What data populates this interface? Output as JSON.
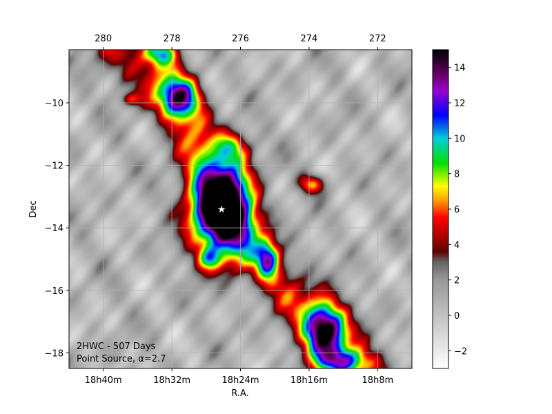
{
  "chart_data": {
    "type": "heatmap",
    "title": "",
    "xlabel": "R.A.",
    "ylabel": "Dec",
    "xlim_deg": [
      281,
      271
    ],
    "ylim": [
      -18.5,
      -8.3
    ],
    "bottom_ticks": [
      {
        "ra": 280.0,
        "label": "18h40m"
      },
      {
        "ra": 278.0,
        "label": "18h32m"
      },
      {
        "ra": 276.0,
        "label": "18h24m"
      },
      {
        "ra": 274.0,
        "label": "18h16m"
      },
      {
        "ra": 272.0,
        "label": "18h8m"
      }
    ],
    "top_ticks": [
      {
        "ra": 280,
        "label": "280"
      },
      {
        "ra": 278,
        "label": "278"
      },
      {
        "ra": 276,
        "label": "276"
      },
      {
        "ra": 274,
        "label": "274"
      },
      {
        "ra": 272,
        "label": "272"
      }
    ],
    "y_ticks": [
      {
        "dec": -10,
        "label": "−10"
      },
      {
        "dec": -12,
        "label": "−12"
      },
      {
        "dec": -14,
        "label": "−14"
      },
      {
        "dec": -16,
        "label": "−16"
      },
      {
        "dec": -18,
        "label": "−18"
      }
    ],
    "grid": true,
    "colorbar": {
      "range": [
        -3,
        15
      ],
      "ticks": [
        {
          "v": -2,
          "label": "−2"
        },
        {
          "v": 0,
          "label": "0"
        },
        {
          "v": 2,
          "label": "2"
        },
        {
          "v": 4,
          "label": "4"
        },
        {
          "v": 6,
          "label": "6"
        },
        {
          "v": 8,
          "label": "8"
        },
        {
          "v": 10,
          "label": "10"
        },
        {
          "v": 12,
          "label": "12"
        },
        {
          "v": 14,
          "label": "14"
        }
      ],
      "stops": [
        {
          "v": -3,
          "color": "#ffffff"
        },
        {
          "v": 2.0,
          "color": "#999999"
        },
        {
          "v": 3.0,
          "color": "#666666"
        },
        {
          "v": 3.6,
          "color": "#600000"
        },
        {
          "v": 4.5,
          "color": "#b00000"
        },
        {
          "v": 5.5,
          "color": "#ff0000"
        },
        {
          "v": 6.5,
          "color": "#ffa000"
        },
        {
          "v": 7.3,
          "color": "#ffff00"
        },
        {
          "v": 8.6,
          "color": "#00e000"
        },
        {
          "v": 10.0,
          "color": "#00ccdd"
        },
        {
          "v": 11.3,
          "color": "#0000ff"
        },
        {
          "v": 12.7,
          "color": "#9900cc"
        },
        {
          "v": 13.6,
          "color": "#660066"
        },
        {
          "v": 15.0,
          "color": "#000000"
        }
      ]
    },
    "sources": [
      {
        "ra": 276.55,
        "dec": -13.4,
        "peak": 17.5,
        "sra": 0.62,
        "sdec": 1.05
      },
      {
        "ra": 273.55,
        "dec": -17.25,
        "peak": 12.5,
        "sra": 0.42,
        "sdec": 0.62
      },
      {
        "ra": 277.8,
        "dec": -9.85,
        "peak": 9.8,
        "sra": 0.42,
        "sdec": 0.48
      },
      {
        "ra": 278.3,
        "dec": -8.4,
        "peak": 8.0,
        "sra": 0.35,
        "sdec": 0.3
      },
      {
        "ra": 275.2,
        "dec": -15.0,
        "peak": 7.8,
        "sra": 0.22,
        "sdec": 0.4
      },
      {
        "ra": 273.0,
        "dec": -18.3,
        "peak": 7.5,
        "sra": 0.55,
        "sdec": 0.3
      },
      {
        "ra": 273.9,
        "dec": -12.6,
        "peak": 5.8,
        "sra": 0.28,
        "sdec": 0.22
      },
      {
        "ra": 276.2,
        "dec": -11.4,
        "peak": 5.5,
        "sra": 0.35,
        "sdec": 0.35
      },
      {
        "ra": 276.9,
        "dec": -15.0,
        "peak": 5.0,
        "sra": 0.25,
        "sdec": 0.25
      },
      {
        "ra": 279.2,
        "dec": -9.9,
        "peak": 4.0,
        "sra": 0.2,
        "sdec": 0.15
      }
    ],
    "ridge": [
      {
        "ra": 279.5,
        "dec": -8.3
      },
      {
        "ra": 277.8,
        "dec": -10.0
      },
      {
        "ra": 276.6,
        "dec": -13.2
      },
      {
        "ra": 275.2,
        "dec": -15.2
      },
      {
        "ra": 273.6,
        "dec": -17.2
      },
      {
        "ra": 272.6,
        "dec": -18.6
      }
    ],
    "star": {
      "ra": 276.55,
      "dec": -13.4,
      "symbol": "★"
    },
    "annotation_lines": [
      "2HWC - 507 Days",
      "Point Source, α=2.7"
    ]
  }
}
